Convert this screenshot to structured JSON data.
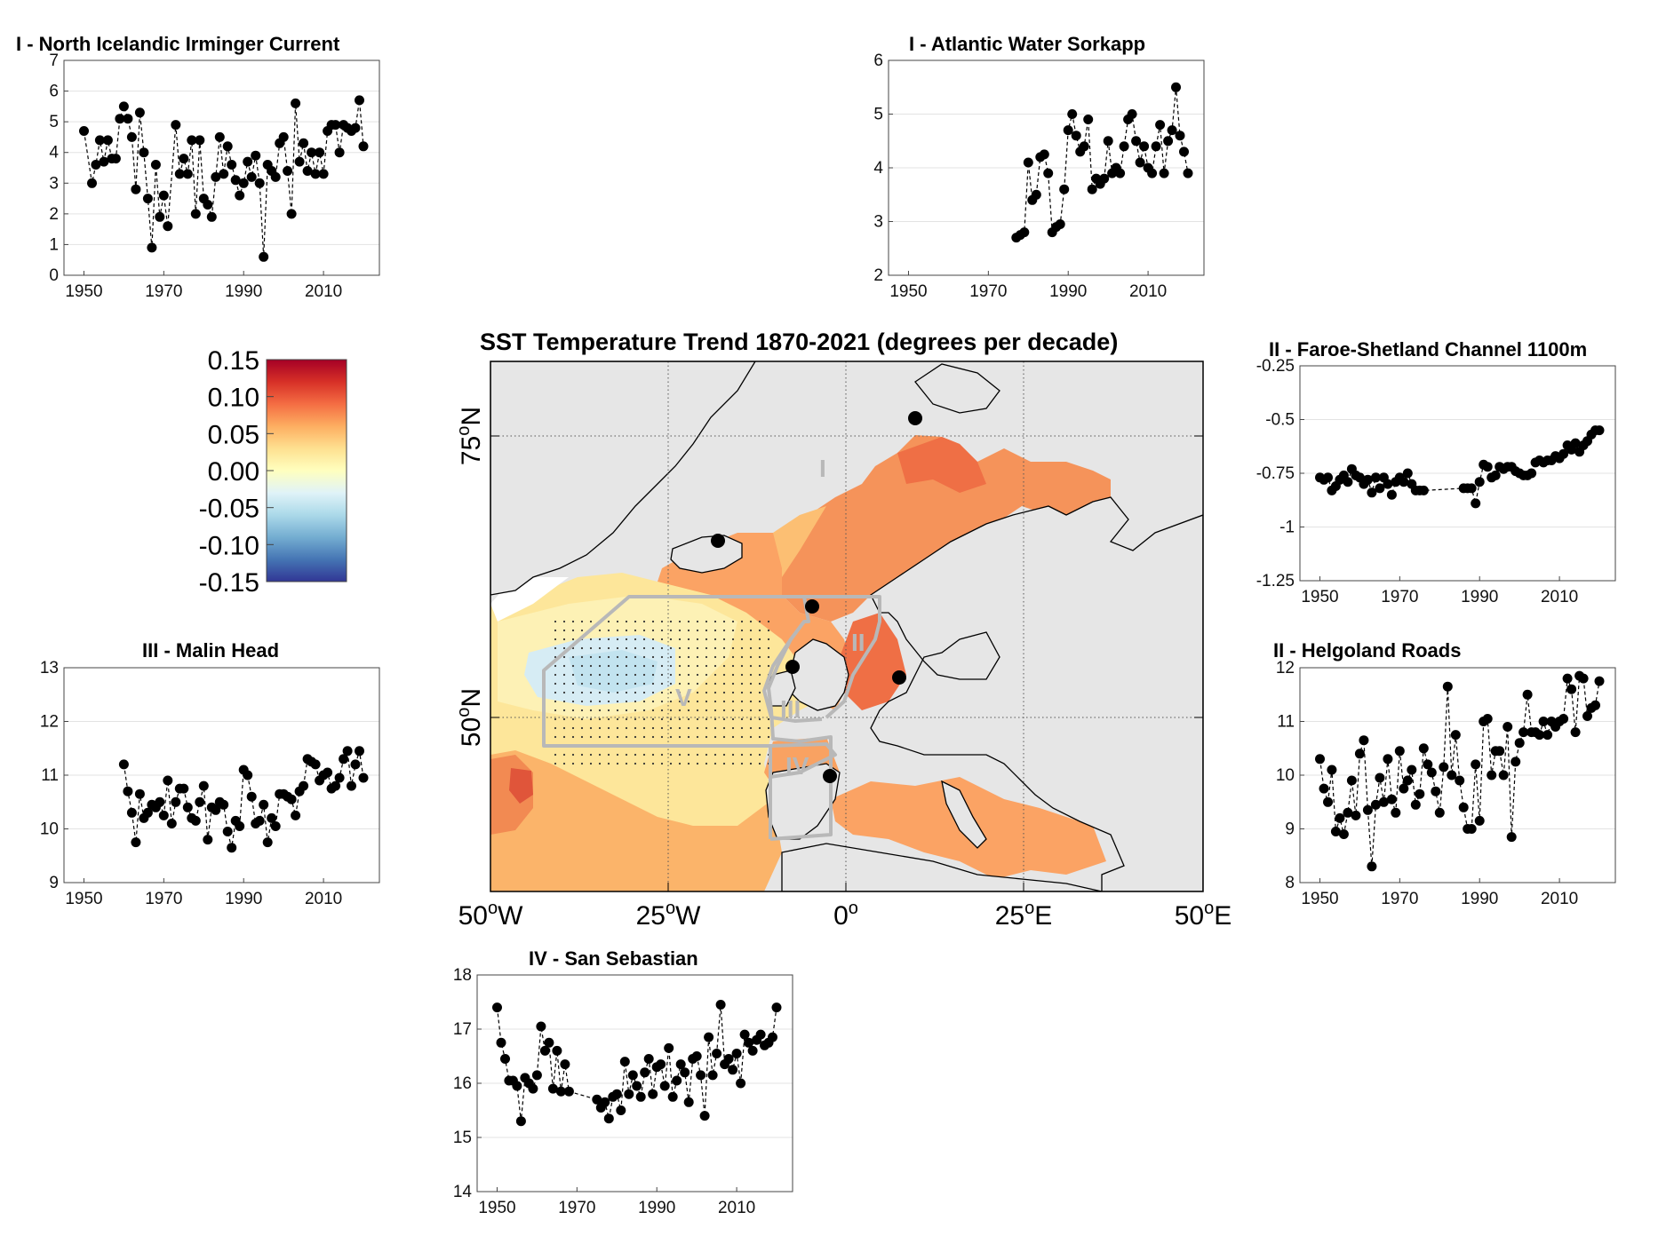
{
  "chart_data": [
    {
      "id": "irminger",
      "type": "line",
      "title": "I -  North Icelandic Irminger Current",
      "xlim": [
        1945,
        2024
      ],
      "ylim": [
        0,
        7
      ],
      "xticks": [
        "1950",
        "1970",
        "1990",
        "2010"
      ],
      "yticks": [
        "0",
        "1",
        "2",
        "3",
        "4",
        "5",
        "6",
        "7"
      ],
      "grid": "horizontal",
      "x": [
        1950,
        1952,
        1953,
        1954,
        1955,
        1956,
        1957,
        1958,
        1959,
        1960,
        1961,
        1962,
        1963,
        1964,
        1965,
        1966,
        1967,
        1968,
        1969,
        1970,
        1971,
        1973,
        1974,
        1975,
        1976,
        1977,
        1978,
        1979,
        1980,
        1981,
        1982,
        1983,
        1984,
        1985,
        1986,
        1987,
        1988,
        1989,
        1990,
        1991,
        1992,
        1993,
        1994,
        1995,
        1996,
        1997,
        1998,
        1999,
        2000,
        2001,
        2002,
        2003,
        2004,
        2005,
        2006,
        2007,
        2008,
        2009,
        2010,
        2011,
        2012,
        2013,
        2014,
        2015,
        2016,
        2017,
        2018,
        2019,
        2020
      ],
      "values": [
        4.7,
        3.0,
        3.6,
        4.4,
        3.7,
        4.4,
        3.8,
        3.8,
        5.1,
        5.5,
        5.1,
        4.5,
        2.8,
        5.3,
        4.0,
        2.5,
        0.9,
        3.6,
        1.9,
        2.6,
        1.6,
        4.9,
        3.3,
        3.8,
        3.3,
        4.4,
        2.0,
        4.4,
        2.5,
        2.3,
        1.9,
        3.2,
        4.5,
        3.3,
        4.2,
        3.6,
        3.1,
        2.6,
        3.0,
        3.7,
        3.2,
        3.9,
        3.0,
        0.6,
        3.6,
        3.4,
        3.2,
        4.3,
        4.5,
        3.4,
        2.0,
        5.6,
        3.7,
        4.3,
        3.4,
        4.0,
        3.3,
        4.0,
        3.3,
        4.7,
        4.9,
        4.9,
        4.0,
        4.9,
        4.8,
        4.7,
        4.8,
        5.7,
        4.2
      ]
    },
    {
      "id": "sorkapp",
      "type": "line",
      "title": "I - Atlantic Water Sorkapp",
      "xlim": [
        1945,
        2024
      ],
      "ylim": [
        2,
        6
      ],
      "xticks": [
        "1950",
        "1970",
        "1990",
        "2010"
      ],
      "yticks": [
        "2",
        "3",
        "4",
        "5",
        "6"
      ],
      "grid": "horizontal",
      "x": [
        1977,
        1978,
        1979,
        1980,
        1981,
        1982,
        1983,
        1984,
        1985,
        1986,
        1987,
        1988,
        1989,
        1990,
        1991,
        1992,
        1993,
        1994,
        1995,
        1996,
        1997,
        1998,
        1999,
        2000,
        2001,
        2002,
        2003,
        2004,
        2005,
        2006,
        2007,
        2008,
        2009,
        2010,
        2011,
        2012,
        2013,
        2014,
        2015,
        2016,
        2017,
        2018,
        2019,
        2020
      ],
      "values": [
        2.7,
        2.75,
        2.8,
        4.1,
        3.4,
        3.5,
        4.2,
        4.25,
        3.9,
        2.8,
        2.9,
        2.95,
        3.6,
        4.7,
        5.0,
        4.6,
        4.3,
        4.4,
        4.9,
        3.6,
        3.8,
        3.7,
        3.8,
        4.5,
        3.9,
        4.0,
        3.9,
        4.4,
        4.9,
        5.0,
        4.5,
        4.1,
        4.4,
        4.0,
        3.9,
        4.4,
        4.8,
        3.9,
        4.5,
        4.7,
        5.5,
        4.6,
        4.3,
        3.9
      ]
    },
    {
      "id": "faroe",
      "type": "line",
      "title": "II - Faroe-Shetland Channel 1100m",
      "xlim": [
        1945,
        2024
      ],
      "ylim": [
        -1.25,
        -0.25
      ],
      "xticks": [
        "1950",
        "1970",
        "1990",
        "2010"
      ],
      "yticks": [
        "-1.25",
        "-1",
        "-0.75",
        "-0.5",
        "-0.25"
      ],
      "grid": "horizontal",
      "x": [
        1950,
        1951,
        1952,
        1953,
        1954,
        1955,
        1956,
        1957,
        1958,
        1959,
        1960,
        1961,
        1962,
        1963,
        1964,
        1965,
        1966,
        1967,
        1968,
        1969,
        1970,
        1971,
        1972,
        1973,
        1974,
        1975,
        1976,
        1986,
        1987,
        1988,
        1989,
        1990,
        1991,
        1992,
        1993,
        1994,
        1995,
        1996,
        1997,
        1998,
        1999,
        2000,
        2001,
        2002,
        2003,
        2004,
        2005,
        2006,
        2007,
        2008,
        2009,
        2010,
        2011,
        2012,
        2013,
        2014,
        2015,
        2016,
        2017,
        2018,
        2019,
        2020
      ],
      "values": [
        -0.77,
        -0.78,
        -0.77,
        -0.83,
        -0.81,
        -0.78,
        -0.76,
        -0.79,
        -0.73,
        -0.76,
        -0.77,
        -0.8,
        -0.78,
        -0.84,
        -0.77,
        -0.82,
        -0.77,
        -0.8,
        -0.85,
        -0.79,
        -0.77,
        -0.79,
        -0.75,
        -0.8,
        -0.83,
        -0.83,
        -0.83,
        -0.82,
        -0.82,
        -0.82,
        -0.89,
        -0.79,
        -0.71,
        -0.72,
        -0.77,
        -0.76,
        -0.72,
        -0.73,
        -0.72,
        -0.72,
        -0.74,
        -0.75,
        -0.76,
        -0.76,
        -0.75,
        -0.7,
        -0.69,
        -0.7,
        -0.69,
        -0.69,
        -0.67,
        -0.68,
        -0.66,
        -0.62,
        -0.64,
        -0.61,
        -0.65,
        -0.62,
        -0.6,
        -0.57,
        -0.55,
        -0.55
      ]
    },
    {
      "id": "malin",
      "type": "line",
      "title": "III - Malin Head",
      "xlim": [
        1945,
        2024
      ],
      "ylim": [
        9,
        13
      ],
      "xticks": [
        "1950",
        "1970",
        "1990",
        "2010"
      ],
      "yticks": [
        "9",
        "10",
        "11",
        "12",
        "13"
      ],
      "grid": "horizontal",
      "x": [
        1960,
        1961,
        1962,
        1963,
        1964,
        1965,
        1966,
        1967,
        1968,
        1969,
        1970,
        1971,
        1972,
        1973,
        1974,
        1975,
        1976,
        1977,
        1978,
        1979,
        1980,
        1981,
        1982,
        1983,
        1984,
        1985,
        1986,
        1987,
        1988,
        1989,
        1990,
        1991,
        1992,
        1993,
        1994,
        1995,
        1996,
        1997,
        1998,
        1999,
        2000,
        2001,
        2002,
        2003,
        2004,
        2005,
        2006,
        2007,
        2008,
        2009,
        2010,
        2011,
        2012,
        2013,
        2014,
        2015,
        2016,
        2017,
        2018,
        2019,
        2020
      ],
      "values": [
        11.2,
        10.7,
        10.3,
        9.75,
        10.65,
        10.2,
        10.3,
        10.45,
        10.4,
        10.5,
        10.25,
        10.9,
        10.1,
        10.5,
        10.75,
        10.75,
        10.4,
        10.2,
        10.15,
        10.5,
        10.8,
        9.8,
        10.4,
        10.35,
        10.5,
        10.45,
        9.95,
        9.65,
        10.15,
        10.05,
        11.1,
        11.0,
        10.6,
        10.1,
        10.15,
        10.45,
        9.75,
        10.2,
        10.05,
        10.65,
        10.65,
        10.6,
        10.55,
        10.25,
        10.7,
        10.8,
        11.3,
        11.25,
        11.2,
        10.9,
        11.0,
        11.05,
        10.75,
        10.8,
        10.95,
        11.3,
        11.45,
        10.8,
        11.2,
        11.45,
        10.95
      ]
    },
    {
      "id": "helgoland",
      "type": "line",
      "title": "II - Helgoland Roads",
      "xlim": [
        1945,
        2024
      ],
      "ylim": [
        8,
        12
      ],
      "xticks": [
        "1950",
        "1970",
        "1990",
        "2010"
      ],
      "yticks": [
        "8",
        "9",
        "10",
        "11",
        "12"
      ],
      "grid": "horizontal",
      "x": [
        1950,
        1951,
        1952,
        1953,
        1954,
        1955,
        1956,
        1957,
        1958,
        1959,
        1960,
        1961,
        1962,
        1963,
        1964,
        1965,
        1966,
        1967,
        1968,
        1969,
        1970,
        1971,
        1972,
        1973,
        1974,
        1975,
        1976,
        1977,
        1978,
        1979,
        1980,
        1981,
        1982,
        1983,
        1984,
        1985,
        1986,
        1987,
        1988,
        1989,
        1990,
        1991,
        1992,
        1993,
        1994,
        1995,
        1996,
        1997,
        1998,
        1999,
        2000,
        2001,
        2002,
        2003,
        2004,
        2005,
        2006,
        2007,
        2008,
        2009,
        2010,
        2011,
        2012,
        2013,
        2014,
        2015,
        2016,
        2017,
        2018,
        2019,
        2020
      ],
      "values": [
        10.3,
        9.75,
        9.5,
        10.1,
        8.95,
        9.2,
        8.9,
        9.3,
        9.9,
        9.25,
        10.4,
        10.65,
        9.35,
        8.3,
        9.45,
        9.95,
        9.5,
        10.3,
        9.55,
        9.3,
        10.45,
        9.75,
        9.9,
        10.1,
        9.45,
        9.65,
        10.5,
        10.2,
        10.05,
        9.7,
        9.3,
        10.15,
        11.65,
        10.0,
        10.75,
        9.9,
        9.4,
        9.0,
        9.0,
        10.2,
        9.15,
        11.0,
        11.05,
        10.0,
        10.45,
        10.45,
        10.0,
        10.9,
        8.85,
        10.25,
        10.6,
        10.8,
        11.5,
        10.8,
        10.8,
        10.75,
        11.0,
        10.75,
        11.0,
        10.9,
        11.0,
        11.05,
        11.8,
        11.6,
        10.8,
        11.85,
        11.8,
        11.1,
        11.25,
        11.3,
        11.75
      ]
    },
    {
      "id": "sansebastian",
      "type": "line",
      "title": "IV - San Sebastian",
      "xlim": [
        1945,
        2024
      ],
      "ylim": [
        14,
        18
      ],
      "xticks": [
        "1950",
        "1970",
        "1990",
        "2010"
      ],
      "yticks": [
        "14",
        "15",
        "16",
        "17",
        "18"
      ],
      "grid": "horizontal",
      "x": [
        1950,
        1951,
        1952,
        1953,
        1954,
        1955,
        1956,
        1957,
        1958,
        1959,
        1960,
        1961,
        1962,
        1963,
        1964,
        1965,
        1966,
        1967,
        1968,
        1975,
        1976,
        1977,
        1978,
        1979,
        1980,
        1981,
        1982,
        1983,
        1984,
        1985,
        1986,
        1987,
        1988,
        1989,
        1990,
        1991,
        1992,
        1993,
        1994,
        1995,
        1996,
        1997,
        1998,
        1999,
        2000,
        2001,
        2002,
        2003,
        2004,
        2005,
        2006,
        2007,
        2008,
        2009,
        2010,
        2011,
        2012,
        2013,
        2014,
        2015,
        2016,
        2017,
        2018,
        2019,
        2020
      ],
      "values": [
        17.4,
        16.75,
        16.45,
        16.05,
        16.05,
        15.95,
        15.3,
        16.1,
        16.0,
        15.9,
        16.15,
        17.05,
        16.6,
        16.75,
        15.9,
        16.6,
        15.85,
        16.35,
        15.85,
        15.7,
        15.55,
        15.65,
        15.35,
        15.75,
        15.8,
        15.5,
        16.4,
        15.8,
        16.15,
        15.95,
        15.75,
        16.2,
        16.45,
        15.8,
        16.3,
        16.35,
        15.95,
        16.65,
        15.75,
        16.05,
        16.35,
        16.2,
        15.65,
        16.45,
        16.5,
        16.15,
        15.4,
        16.85,
        16.15,
        16.55,
        17.45,
        16.35,
        16.45,
        16.25,
        16.55,
        16.0,
        16.9,
        16.75,
        16.6,
        16.8,
        16.9,
        16.7,
        16.75,
        16.85,
        17.4
      ]
    }
  ],
  "map": {
    "title": "SST Temperature Trend 1870-2021 (degrees per decade)",
    "xtick_labels": [
      {
        "deg": "50",
        "sup": "o",
        "dir": "W"
      },
      {
        "deg": "25",
        "sup": "o",
        "dir": "W"
      },
      {
        "deg": "0",
        "sup": "o",
        "dir": ""
      },
      {
        "deg": "25",
        "sup": "o",
        "dir": "E"
      },
      {
        "deg": "50",
        "sup": "o",
        "dir": "E"
      }
    ],
    "ytick_labels": [
      {
        "deg": "75",
        "sup": "o",
        "dir": "N"
      },
      {
        "deg": "50",
        "sup": "o",
        "dir": "N"
      }
    ],
    "regions": [
      "I",
      "II",
      "III",
      "IV",
      "V"
    ],
    "colors": {
      "land": "#e6e6e6",
      "region_outline": "#b8b8b8",
      "coastline": "#000000"
    }
  },
  "colorbar": {
    "range": [
      -0.15,
      0.15
    ],
    "ticks": [
      "0.15",
      "0.10",
      "0.05",
      "0.00",
      "-0.05",
      "-0.10",
      "-0.15"
    ],
    "colormap": [
      "#a50026",
      "#d73027",
      "#f46d43",
      "#fdae61",
      "#fee090",
      "#ffffbf",
      "#e0f3f8",
      "#abd9e9",
      "#74add1",
      "#4575b4",
      "#313695"
    ]
  }
}
